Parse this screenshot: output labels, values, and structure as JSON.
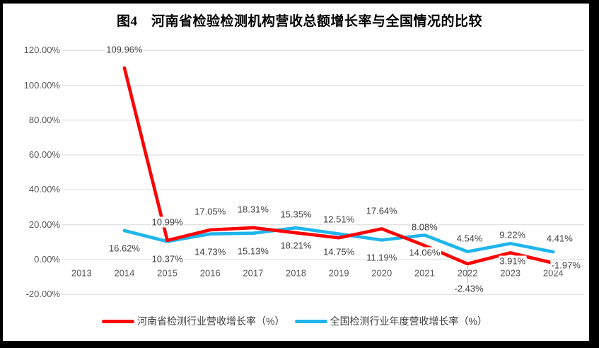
{
  "chart_data": {
    "type": "line",
    "title": "图4　河南省检验检测机构营收总额增长率与全国情况的比较",
    "categories": [
      "2013",
      "2014",
      "2015",
      "2016",
      "2017",
      "2018",
      "2019",
      "2020",
      "2021",
      "2022",
      "2023",
      "2024"
    ],
    "series": [
      {
        "name": "河南省检测行业营收增长率（%）",
        "color": "#FF0000",
        "values": [
          null,
          109.96,
          10.99,
          17.05,
          18.31,
          15.35,
          12.51,
          17.64,
          8.08,
          -2.43,
          3.91,
          -1.97
        ],
        "labels": [
          null,
          "109.96%",
          "10.99%",
          "17.05%",
          "18.31%",
          "15.35%",
          "12.51%",
          "17.64%",
          "8.08%",
          "-2.43%",
          "3.91%",
          "-1.97%"
        ]
      },
      {
        "name": "全国检测行业年度营收增长率（%）",
        "color": "#1FB5EC",
        "values": [
          null,
          16.62,
          10.37,
          14.73,
          15.13,
          18.21,
          14.75,
          11.19,
          14.06,
          4.54,
          9.22,
          4.41
        ],
        "labels": [
          null,
          "16.62%",
          "10.37%",
          "14.73%",
          "15.13%",
          "18.21%",
          "14.75%",
          "11.19%",
          "14.06%",
          "4.54%",
          "9.22%",
          "4.41%"
        ]
      }
    ],
    "y_axis": {
      "min": -20,
      "max": 120,
      "step": 20,
      "ticks": [
        "120.00%",
        "100.00%",
        "80.00%",
        "60.00%",
        "40.00%",
        "20.00%",
        "0.00%",
        "-20.00%"
      ]
    },
    "grid": true,
    "gridline_color": "#D9D9D9",
    "leader_line_color": "#A6A6A6",
    "legend_position": "bottom"
  }
}
